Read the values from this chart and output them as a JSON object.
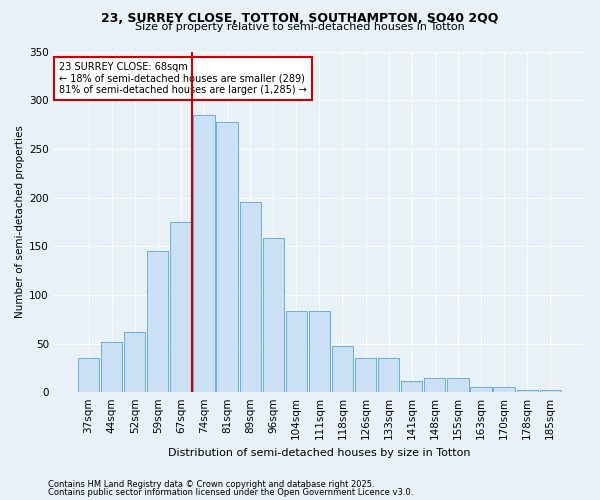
{
  "title1": "23, SURREY CLOSE, TOTTON, SOUTHAMPTON, SO40 2QQ",
  "title2": "Size of property relative to semi-detached houses in Totton",
  "xlabel": "Distribution of semi-detached houses by size in Totton",
  "ylabel": "Number of semi-detached properties",
  "footer1": "Contains HM Land Registry data © Crown copyright and database right 2025.",
  "footer2": "Contains public sector information licensed under the Open Government Licence v3.0.",
  "categories": [
    "37sqm",
    "44sqm",
    "52sqm",
    "59sqm",
    "67sqm",
    "74sqm",
    "81sqm",
    "89sqm",
    "96sqm",
    "104sqm",
    "111sqm",
    "118sqm",
    "126sqm",
    "133sqm",
    "141sqm",
    "148sqm",
    "155sqm",
    "163sqm",
    "170sqm",
    "178sqm",
    "185sqm"
  ],
  "values": [
    35,
    52,
    62,
    145,
    175,
    285,
    278,
    195,
    158,
    83,
    83,
    47,
    35,
    35,
    12,
    15,
    15,
    5,
    5,
    2,
    2
  ],
  "bar_color": "#cce0f5",
  "bar_edge_color": "#6baed6",
  "bg_color": "#e8f0f8",
  "grid_color": "#ffffff",
  "vline_x": 4.5,
  "vline_color": "#cc0000",
  "annotation_title": "23 SURREY CLOSE: 68sqm",
  "annotation_line1": "← 18% of semi-detached houses are smaller (289)",
  "annotation_line2": "81% of semi-detached houses are larger (1,285) →",
  "annotation_box_color": "#cc0000",
  "ylim": [
    0,
    350
  ],
  "yticks": [
    0,
    50,
    100,
    150,
    200,
    250,
    300,
    350
  ]
}
